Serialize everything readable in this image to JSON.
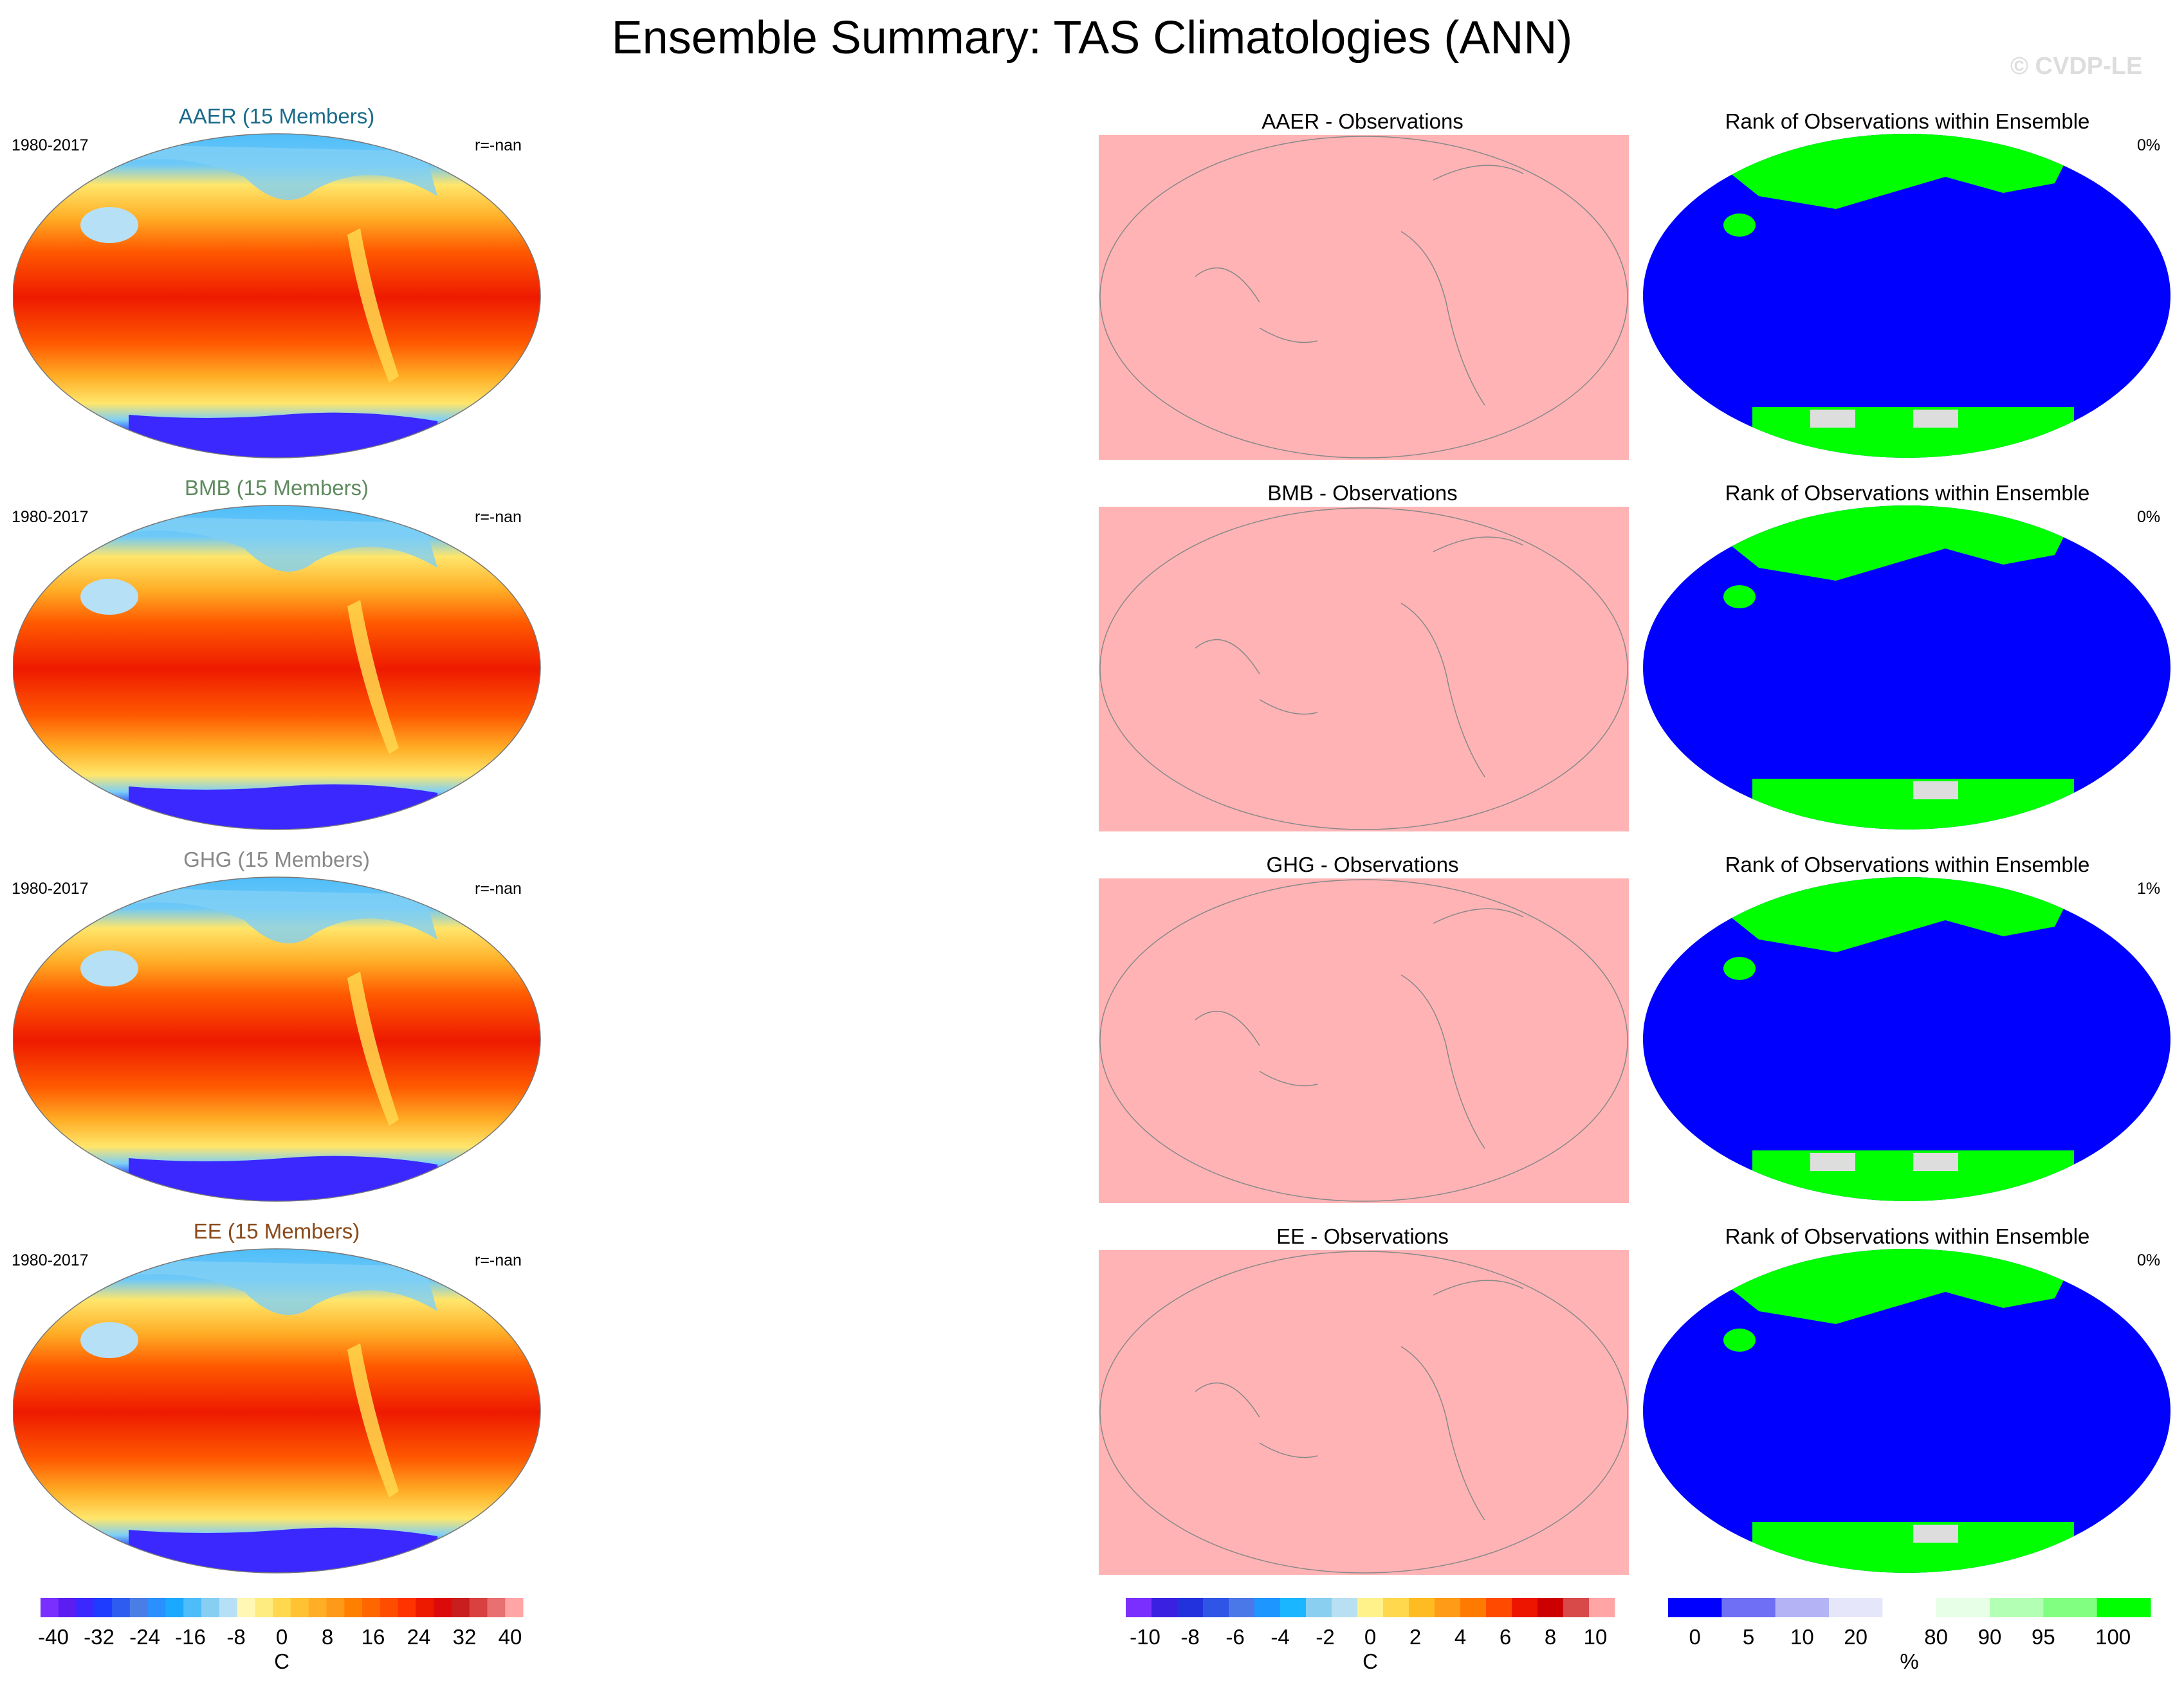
{
  "title": "Ensemble Summary: TAS Climatologies (ANN)",
  "watermark": "© CVDP-LE",
  "colors": {
    "panel_pink": "#ffb3b5",
    "rank_blue": "#0000ff",
    "rank_green": "#00ff00",
    "rank_gray": "#dddddd",
    "title_aaer": "#1a6b8a",
    "title_bmb": "#5e8a5e",
    "title_ghg": "#888888",
    "title_ee": "#8a4a1a"
  },
  "rows": [
    {
      "clim_title": "AAER (15 Members)",
      "period": "1980-2017",
      "corr": "r=-nan",
      "diff_title": "AAER - Observations",
      "rank_title": "Rank of Observations within Ensemble",
      "rank_pct": "0%"
    },
    {
      "clim_title": "BMB (15 Members)",
      "period": "1980-2017",
      "corr": "r=-nan",
      "diff_title": "BMB - Observations",
      "rank_title": "Rank of Observations within Ensemble",
      "rank_pct": "0%"
    },
    {
      "clim_title": "GHG (15 Members)",
      "period": "1980-2017",
      "corr": "r=-nan",
      "diff_title": "GHG - Observations",
      "rank_title": "Rank of Observations within Ensemble",
      "rank_pct": "1%"
    },
    {
      "clim_title": "EE (15 Members)",
      "period": "1980-2017",
      "corr": "r=-nan",
      "diff_title": "EE - Observations",
      "rank_title": "Rank of Observations within Ensemble",
      "rank_pct": "0%"
    }
  ],
  "colorbars": {
    "climatology": {
      "units": "C",
      "ticks": [
        "-40",
        "-32",
        "-24",
        "-16",
        "-8",
        "0",
        "8",
        "16",
        "24",
        "32",
        "40"
      ],
      "colors": [
        "#7b2fff",
        "#5a1ef0",
        "#3a28ff",
        "#1e3cff",
        "#2f5cf0",
        "#4b7de6",
        "#2a90ff",
        "#1aa9ff",
        "#4dbdfa",
        "#86cff2",
        "#b6e0f5",
        "#fff7b3",
        "#ffec80",
        "#ffd84d",
        "#ffc233",
        "#ffae26",
        "#ff9919",
        "#ff8000",
        "#ff6600",
        "#ff4d00",
        "#ff3300",
        "#ee1a00",
        "#dd0a0a",
        "#c81e1e",
        "#d94040",
        "#e87070",
        "#ffa5a5"
      ]
    },
    "difference": {
      "units": "C",
      "ticks": [
        "-10",
        "-8",
        "-6",
        "-4",
        "-2",
        "0",
        "2",
        "4",
        "6",
        "8",
        "10"
      ],
      "colors": [
        "#7b2fff",
        "#3a20e0",
        "#2233dd",
        "#2f55e6",
        "#4a78e8",
        "#1e96ff",
        "#1ab6ff",
        "#8acff0",
        "#b8e0f2",
        "#fff28a",
        "#ffd84d",
        "#ffbb22",
        "#ff9b16",
        "#ff7a00",
        "#ff4a00",
        "#ee1500",
        "#cc0000",
        "#d84a4a",
        "#ffa5a5"
      ]
    },
    "rank": {
      "units": "%",
      "ticks": [
        "0",
        "5",
        "10",
        "20",
        "80",
        "90",
        "95",
        "100"
      ],
      "colors": [
        "#0000ff",
        "#6f6ff5",
        "#b3b3f5",
        "#e6e6fa",
        "#ffffff",
        "#e6ffe6",
        "#b3ffb3",
        "#80ff80",
        "#00ff00"
      ]
    }
  }
}
